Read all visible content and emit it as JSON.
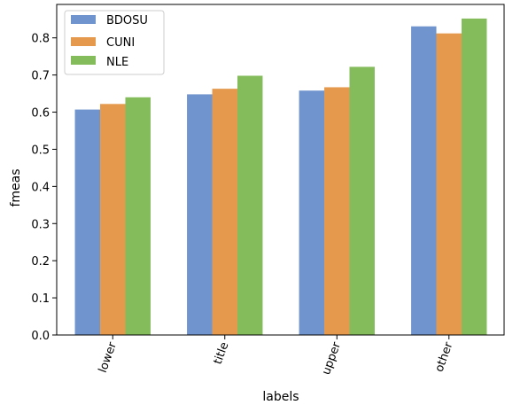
{
  "chart_data": {
    "type": "bar",
    "title": "",
    "xlabel": "labels",
    "ylabel": "fmeas",
    "categories": [
      "lower",
      "title",
      "upper",
      "other"
    ],
    "series": [
      {
        "name": "BDOSU",
        "color": "#7094cd",
        "values": [
          0.607,
          0.648,
          0.658,
          0.831
        ]
      },
      {
        "name": "CUNI",
        "color": "#e5994c",
        "values": [
          0.622,
          0.663,
          0.667,
          0.812
        ]
      },
      {
        "name": "NLE",
        "color": "#84bc5b",
        "values": [
          0.64,
          0.698,
          0.722,
          0.852
        ]
      }
    ],
    "ylim": [
      0.0,
      0.89
    ],
    "yticks": [
      "0.0",
      "0.1",
      "0.2",
      "0.3",
      "0.4",
      "0.5",
      "0.6",
      "0.7",
      "0.8"
    ],
    "grid": false,
    "legend_position": "top-left",
    "xtick_rotation_deg": 70
  }
}
